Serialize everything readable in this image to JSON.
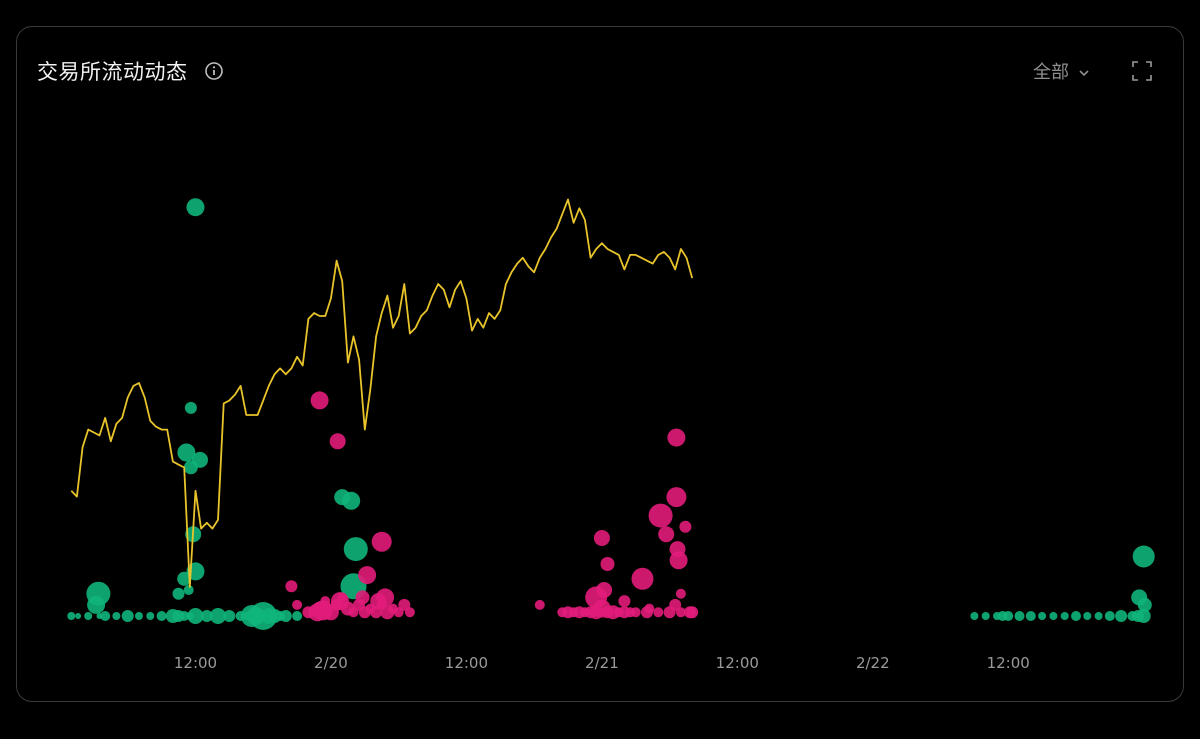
{
  "header": {
    "title": "交易所流动动态",
    "filter_label": "全部"
  },
  "icons": {
    "info": "info-icon",
    "dropdown": "chevron-down-icon",
    "expand": "fullscreen-icon"
  },
  "colors": {
    "price_line": "#e8c42a",
    "inflow": "#0fb57a",
    "outflow": "#e21c7a",
    "tick_text": "#9a9a9a"
  },
  "chart_data": {
    "type": "line+bubble",
    "x_unit": "hours",
    "x_ticks": [
      {
        "x": 12,
        "label": "12:00"
      },
      {
        "x": 24,
        "label": "2/20"
      },
      {
        "x": 36,
        "label": "12:00"
      },
      {
        "x": 48,
        "label": "2/21"
      },
      {
        "x": 60,
        "label": "12:00"
      },
      {
        "x": 72,
        "label": "2/22"
      },
      {
        "x": 84,
        "label": "12:00"
      }
    ],
    "xlim": [
      0,
      97
    ],
    "price_line": [
      [
        1,
        12.3
      ],
      [
        1.5,
        12.1
      ],
      [
        2,
        13.8
      ],
      [
        2.5,
        14.4
      ],
      [
        3,
        14.3
      ],
      [
        3.5,
        14.2
      ],
      [
        4,
        14.8
      ],
      [
        4.5,
        14.0
      ],
      [
        5,
        14.6
      ],
      [
        5.5,
        14.8
      ],
      [
        6,
        15.5
      ],
      [
        6.5,
        15.9
      ],
      [
        7,
        16.0
      ],
      [
        7.5,
        15.5
      ],
      [
        8,
        14.7
      ],
      [
        8.5,
        14.5
      ],
      [
        9,
        14.4
      ],
      [
        9.5,
        14.4
      ],
      [
        10,
        13.3
      ],
      [
        10.5,
        13.2
      ],
      [
        11,
        13.1
      ],
      [
        11.5,
        9.0
      ],
      [
        12,
        12.3
      ],
      [
        12.5,
        11.0
      ],
      [
        13,
        11.2
      ],
      [
        13.5,
        11.0
      ],
      [
        14,
        11.3
      ],
      [
        14.5,
        15.3
      ],
      [
        15,
        15.4
      ],
      [
        15.5,
        15.6
      ],
      [
        16,
        15.9
      ],
      [
        16.5,
        14.9
      ],
      [
        17,
        14.9
      ],
      [
        17.5,
        14.9
      ],
      [
        18,
        15.4
      ],
      [
        18.5,
        15.9
      ],
      [
        19,
        16.3
      ],
      [
        19.5,
        16.5
      ],
      [
        20,
        16.3
      ],
      [
        20.5,
        16.5
      ],
      [
        21,
        16.9
      ],
      [
        21.5,
        16.6
      ],
      [
        22,
        18.2
      ],
      [
        22.5,
        18.4
      ],
      [
        23,
        18.3
      ],
      [
        23.5,
        18.3
      ],
      [
        24,
        18.9
      ],
      [
        24.5,
        20.2
      ],
      [
        25,
        19.5
      ],
      [
        25.5,
        16.7
      ],
      [
        26,
        17.6
      ],
      [
        26.5,
        16.8
      ],
      [
        27,
        14.4
      ],
      [
        27.5,
        15.8
      ],
      [
        28,
        17.6
      ],
      [
        28.5,
        18.4
      ],
      [
        29,
        19.0
      ],
      [
        29.5,
        17.9
      ],
      [
        30,
        18.3
      ],
      [
        30.5,
        19.4
      ],
      [
        31,
        17.7
      ],
      [
        31.5,
        17.9
      ],
      [
        32,
        18.3
      ],
      [
        32.5,
        18.5
      ],
      [
        33,
        19.0
      ],
      [
        33.5,
        19.4
      ],
      [
        34,
        19.2
      ],
      [
        34.5,
        18.6
      ],
      [
        35,
        19.2
      ],
      [
        35.5,
        19.5
      ],
      [
        36,
        18.9
      ],
      [
        36.5,
        17.8
      ],
      [
        37,
        18.2
      ],
      [
        37.5,
        17.9
      ],
      [
        38,
        18.4
      ],
      [
        38.5,
        18.2
      ],
      [
        39,
        18.5
      ],
      [
        39.5,
        19.4
      ],
      [
        40,
        19.8
      ],
      [
        40.5,
        20.1
      ],
      [
        41,
        20.3
      ],
      [
        41.5,
        20.0
      ],
      [
        42,
        19.8
      ],
      [
        42.5,
        20.3
      ],
      [
        43,
        20.6
      ],
      [
        43.5,
        21.0
      ],
      [
        44,
        21.3
      ],
      [
        44.5,
        21.8
      ],
      [
        45,
        22.3
      ],
      [
        45.5,
        21.5
      ],
      [
        46,
        22.0
      ],
      [
        46.5,
        21.6
      ],
      [
        47,
        20.3
      ],
      [
        47.5,
        20.6
      ],
      [
        48,
        20.8
      ],
      [
        48.5,
        20.6
      ],
      [
        49,
        20.5
      ],
      [
        49.5,
        20.4
      ],
      [
        50,
        19.9
      ],
      [
        50.5,
        20.4
      ],
      [
        51,
        20.4
      ],
      [
        51.5,
        20.3
      ],
      [
        52,
        20.2
      ],
      [
        52.5,
        20.1
      ],
      [
        53,
        20.4
      ],
      [
        53.5,
        20.5
      ],
      [
        54,
        20.3
      ],
      [
        54.5,
        19.9
      ],
      [
        55,
        20.6
      ],
      [
        55.5,
        20.3
      ],
      [
        56,
        19.6
      ]
    ],
    "price_scale": {
      "min": 8.0,
      "max": 24.0
    },
    "bubbles_in": [
      [
        1,
        0,
        4
      ],
      [
        1.6,
        0,
        3
      ],
      [
        2.5,
        0,
        4
      ],
      [
        3.5,
        0,
        3
      ],
      [
        4,
        0,
        5
      ],
      [
        5,
        0,
        4
      ],
      [
        6,
        0,
        6
      ],
      [
        7,
        0,
        4
      ],
      [
        8,
        0,
        4
      ],
      [
        9,
        0,
        5
      ],
      [
        10,
        0,
        7
      ],
      [
        10.5,
        0,
        6
      ],
      [
        11,
        0,
        5
      ],
      [
        11.5,
        0,
        4
      ],
      [
        12,
        0,
        8
      ],
      [
        13,
        0,
        6
      ],
      [
        14,
        0,
        8
      ],
      [
        15,
        0,
        6
      ],
      [
        16,
        0,
        5
      ],
      [
        16.5,
        0,
        4
      ],
      [
        17,
        0,
        11
      ],
      [
        17.3,
        0,
        9
      ],
      [
        17.6,
        0,
        7
      ],
      [
        18,
        0,
        14
      ],
      [
        18.5,
        0,
        8
      ],
      [
        19,
        0,
        7
      ],
      [
        19.5,
        0,
        5
      ],
      [
        20,
        0,
        6
      ],
      [
        21,
        0,
        5
      ],
      [
        3.4,
        0.6,
        12
      ],
      [
        3.2,
        0.3,
        9
      ],
      [
        10.5,
        0.6,
        6
      ],
      [
        11,
        1.0,
        7
      ],
      [
        11.4,
        0.7,
        5
      ],
      [
        12,
        1.2,
        9
      ],
      [
        11.8,
        2.2,
        8
      ],
      [
        11.2,
        4.4,
        9
      ],
      [
        11.6,
        4.0,
        7
      ],
      [
        12.4,
        4.2,
        8
      ],
      [
        11.6,
        5.6,
        6
      ],
      [
        12,
        11.0,
        9
      ],
      [
        26,
        0.8,
        13
      ],
      [
        26.2,
        1.8,
        12
      ],
      [
        25,
        3.2,
        8
      ],
      [
        25.8,
        3.1,
        9
      ],
      [
        81,
        0,
        4
      ],
      [
        82,
        0,
        4
      ],
      [
        83,
        0,
        4
      ],
      [
        84,
        0,
        5
      ],
      [
        85,
        0,
        5
      ],
      [
        86,
        0,
        5
      ],
      [
        87,
        0,
        4
      ],
      [
        88,
        0,
        4
      ],
      [
        89,
        0,
        4
      ],
      [
        90,
        0,
        5
      ],
      [
        91,
        0,
        4
      ],
      [
        92,
        0,
        4
      ],
      [
        93,
        0,
        5
      ],
      [
        94,
        0,
        6
      ],
      [
        95,
        0,
        5
      ],
      [
        95.5,
        0,
        6
      ],
      [
        96,
        0,
        7
      ],
      [
        95.6,
        0.5,
        8
      ],
      [
        96.1,
        0.3,
        7
      ],
      [
        96,
        1.6,
        11
      ],
      [
        83.5,
        0,
        5
      ]
    ],
    "bubbles_out": [
      [
        20.5,
        0.8,
        6
      ],
      [
        21,
        0.3,
        5
      ],
      [
        22,
        0.1,
        6
      ],
      [
        23,
        0.2,
        7
      ],
      [
        23.5,
        0.4,
        5
      ],
      [
        24,
        0.1,
        8
      ],
      [
        24.5,
        0.3,
        6
      ],
      [
        25,
        0.5,
        5
      ],
      [
        25.5,
        0.2,
        7
      ],
      [
        26,
        0.1,
        5
      ],
      [
        26.5,
        0.3,
        6
      ],
      [
        27,
        0.1,
        6
      ],
      [
        27.5,
        0.2,
        5
      ],
      [
        28,
        0.1,
        6
      ],
      [
        28.5,
        0.3,
        5
      ],
      [
        29,
        0.1,
        7
      ],
      [
        29.5,
        0.2,
        5
      ],
      [
        30,
        0.1,
        5
      ],
      [
        30.5,
        0.3,
        6
      ],
      [
        22.8,
        0.1,
        9
      ],
      [
        23.3,
        0.15,
        10
      ],
      [
        26.8,
        0.5,
        7
      ],
      [
        31,
        0.1,
        5
      ],
      [
        24.8,
        0.4,
        9
      ],
      [
        23,
        5.8,
        9
      ],
      [
        24.6,
        4.7,
        8
      ],
      [
        27.2,
        1.1,
        9
      ],
      [
        28.5,
        2.0,
        10
      ],
      [
        28.2,
        0.4,
        8
      ],
      [
        28.8,
        0.5,
        9
      ],
      [
        42.5,
        0.3,
        5
      ],
      [
        44.5,
        0.1,
        5
      ],
      [
        45,
        0.1,
        6
      ],
      [
        45.5,
        0.1,
        5
      ],
      [
        46,
        0.1,
        6
      ],
      [
        46.5,
        0.1,
        5
      ],
      [
        47,
        0.1,
        6
      ],
      [
        47.5,
        0.1,
        7
      ],
      [
        48,
        0.2,
        9
      ],
      [
        48.5,
        0.1,
        6
      ],
      [
        49,
        0.1,
        7
      ],
      [
        49.5,
        0.1,
        5
      ],
      [
        50,
        0.1,
        6
      ],
      [
        50.5,
        0.1,
        5
      ],
      [
        51,
        0.1,
        5
      ],
      [
        52,
        0.1,
        6
      ],
      [
        53,
        0.1,
        5
      ],
      [
        54,
        0.1,
        6
      ],
      [
        55,
        0.1,
        5
      ],
      [
        56,
        0.1,
        6
      ],
      [
        47.5,
        0.5,
        11
      ],
      [
        48.2,
        0.7,
        8
      ],
      [
        48,
        2.1,
        8
      ],
      [
        48.5,
        1.4,
        7
      ],
      [
        50,
        0.4,
        6
      ],
      [
        51.6,
        1.0,
        11
      ],
      [
        52.2,
        0.2,
        5
      ],
      [
        54.5,
        0.3,
        6
      ],
      [
        54.8,
        1.5,
        9
      ],
      [
        54.6,
        4.8,
        9
      ],
      [
        54.7,
        1.8,
        8
      ],
      [
        55.4,
        2.4,
        6
      ],
      [
        54.6,
        3.2,
        10
      ],
      [
        53.2,
        2.7,
        12
      ],
      [
        55,
        0.6,
        5
      ],
      [
        53.7,
        2.2,
        8
      ],
      [
        55.8,
        0.1,
        6
      ]
    ],
    "bubble_scale": {
      "min": 0,
      "max": 12
    }
  }
}
